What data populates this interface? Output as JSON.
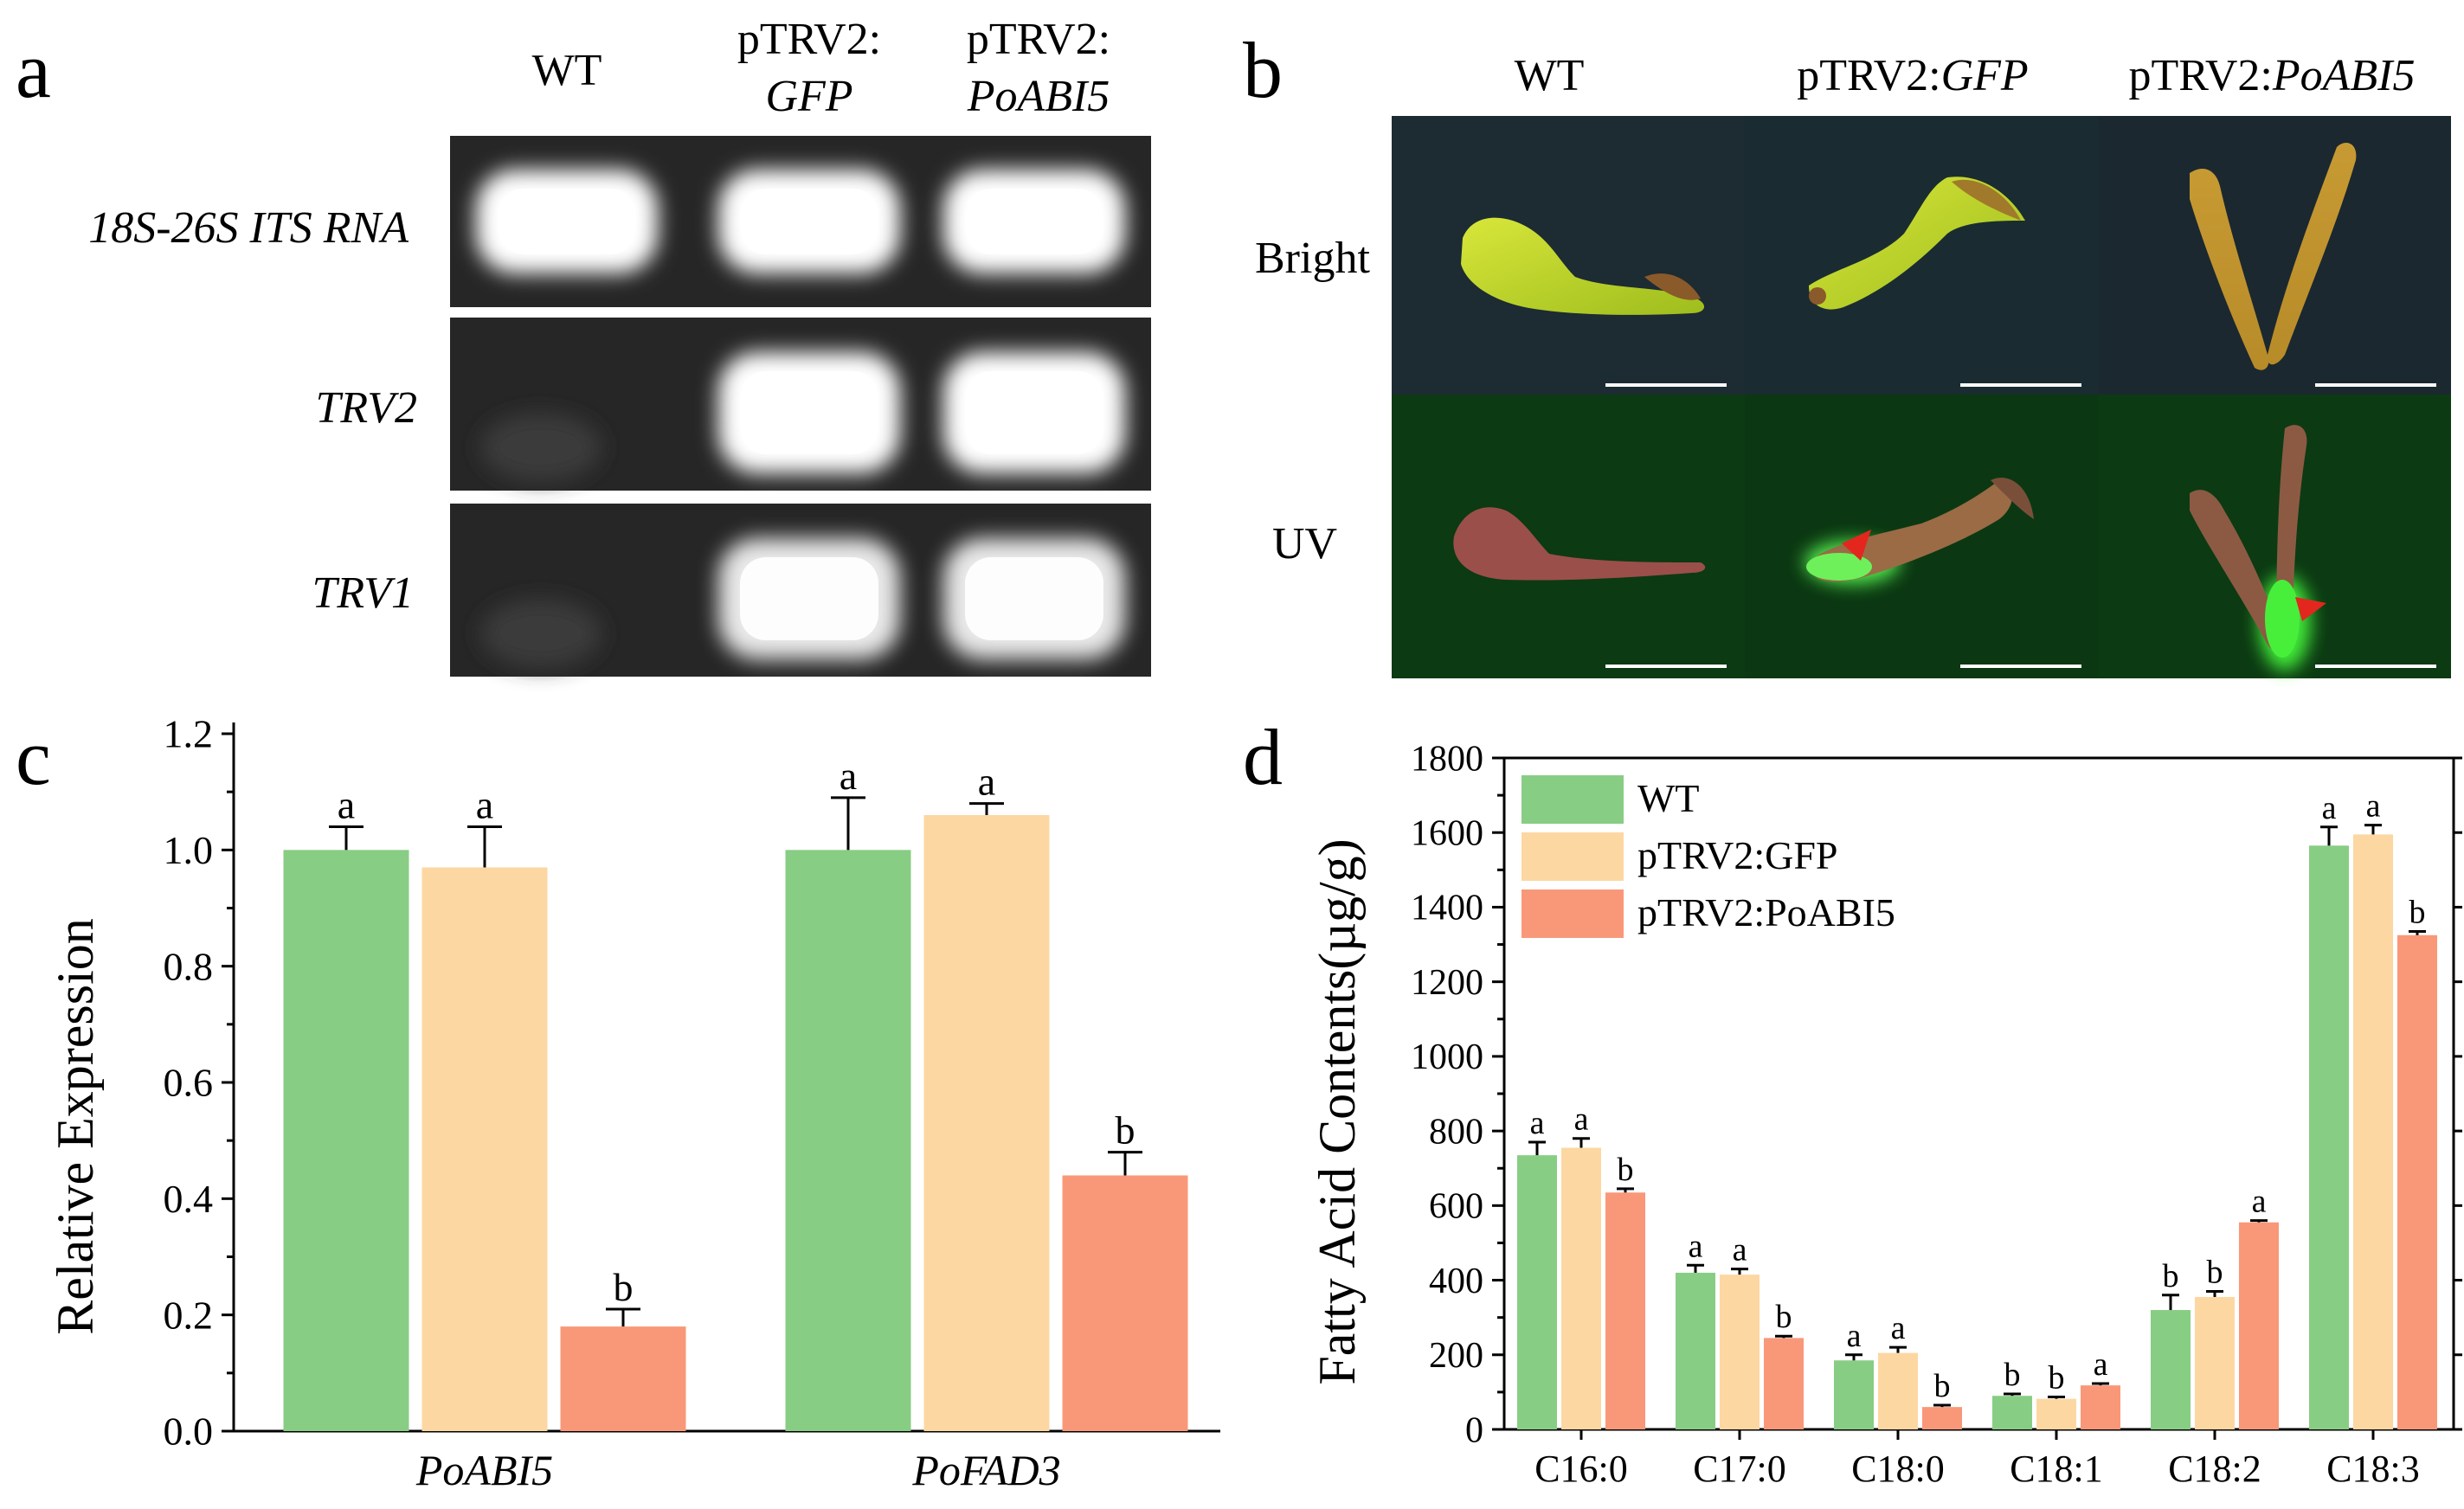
{
  "panels": {
    "a": {
      "letter": "a",
      "columns": [
        {
          "line1": "WT",
          "line2": ""
        },
        {
          "line1": "pTRV2:",
          "line2": "GFP"
        },
        {
          "line1": "pTRV2:",
          "line2": "PoABI5"
        }
      ],
      "rows": [
        "18S-26S ITS RNA",
        "TRV2",
        "TRV1"
      ],
      "band_intensity": [
        [
          1,
          1,
          1
        ],
        [
          0.02,
          1,
          1
        ],
        [
          0.02,
          0.9,
          0.9
        ]
      ]
    },
    "b": {
      "letter": "b",
      "columns": [
        {
          "prefix": "WT",
          "gene": ""
        },
        {
          "prefix": "pTRV2:",
          "gene": "GFP"
        },
        {
          "prefix": "pTRV2:",
          "gene": "PoABI5"
        }
      ],
      "rows": [
        "Bright",
        "UV"
      ],
      "colors": {
        "bright_bg": "#1d2b33",
        "uv_bg": "#0c3a12",
        "arrow": "#e3271e"
      }
    },
    "c": {
      "letter": "c",
      "chart_data": {
        "type": "bar",
        "ylabel": "Relative Expression",
        "ylim": [
          0,
          1.2
        ],
        "yticks": [
          "0.0",
          "0.2",
          "0.4",
          "0.6",
          "0.8",
          "1.0",
          "1.2"
        ],
        "categories": [
          "PoABI5",
          "PoFAD3"
        ],
        "series": [
          {
            "name": "WT",
            "color": "#88cd84",
            "values": [
              1.0,
              1.0
            ],
            "errors": [
              0.04,
              0.09
            ],
            "labels": [
              "a",
              "a"
            ]
          },
          {
            "name": "pTRV2:GFP",
            "color": "#fdd7a2",
            "values": [
              0.97,
              1.06
            ],
            "errors": [
              0.07,
              0.02
            ],
            "labels": [
              "a",
              "a"
            ]
          },
          {
            "name": "pTRV2:PoABI5",
            "color": "#f99878",
            "values": [
              0.18,
              0.44
            ],
            "errors": [
              0.03,
              0.04
            ],
            "labels": [
              "b",
              "b"
            ]
          }
        ]
      }
    },
    "d": {
      "letter": "d",
      "chart_data": {
        "type": "bar",
        "ylabel": "Fatty Acid Contents(µg/g)",
        "ylim": [
          0,
          1800
        ],
        "yticks": [
          "0",
          "200",
          "400",
          "600",
          "800",
          "1000",
          "1200",
          "1400",
          "1600",
          "1800"
        ],
        "categories": [
          "C16:0",
          "C17:0",
          "C18:0",
          "C18:1",
          "C18:2",
          "C18:3"
        ],
        "legend": [
          "WT",
          "pTRV2:GFP",
          "pTRV2:PoABI5"
        ],
        "series": [
          {
            "name": "WT",
            "color": "#88cd84",
            "values": [
              735,
              420,
              185,
              90,
              320,
              1565
            ],
            "errors": [
              35,
              20,
              15,
              5,
              40,
              50
            ],
            "labels": [
              "a",
              "a",
              "a",
              "b",
              "b",
              "a"
            ]
          },
          {
            "name": "pTRV2:GFP",
            "color": "#fdd7a2",
            "values": [
              755,
              415,
              205,
              82,
              355,
              1595
            ],
            "errors": [
              25,
              15,
              15,
              5,
              15,
              25
            ],
            "labels": [
              "a",
              "a",
              "a",
              "b",
              "b",
              "a"
            ]
          },
          {
            "name": "pTRV2:PoABI5",
            "color": "#f99878",
            "values": [
              635,
              245,
              60,
              118,
              555,
              1325
            ],
            "errors": [
              10,
              5,
              5,
              5,
              5,
              10
            ],
            "labels": [
              "b",
              "b",
              "b",
              "a",
              "a",
              "b"
            ]
          }
        ]
      }
    }
  }
}
